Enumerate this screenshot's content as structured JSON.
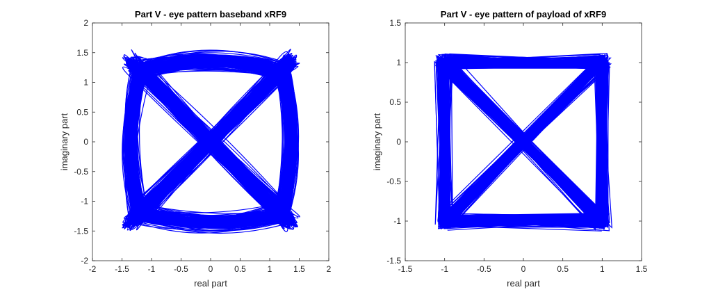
{
  "chart_data": [
    {
      "type": "line",
      "title": "Part V - eye pattern baseband xRF9",
      "xlabel": "real part",
      "ylabel": "imaginary part",
      "xlim": [
        -2,
        2
      ],
      "ylim": [
        -2,
        2
      ],
      "xticks": [
        "-2",
        "-1.5",
        "-1",
        "-0.5",
        "0",
        "0.5",
        "1",
        "1.5",
        "2"
      ],
      "yticks": [
        "-2",
        "-1.5",
        "-1",
        "-0.5",
        "0",
        "0.5",
        "1",
        "1.5",
        "2"
      ],
      "line_color": "#0000ff",
      "grid": false,
      "constellation_points": [
        [
          1.2,
          1.2
        ],
        [
          -1.2,
          1.2
        ],
        [
          -1.2,
          -1.2
        ],
        [
          1.2,
          -1.2
        ]
      ],
      "trace_spread": 0.22,
      "trace_overshoot": 0.35
    },
    {
      "type": "line",
      "title": "Part V - eye pattern of payload of xRF9",
      "xlabel": "real part",
      "ylabel": "imaginary part",
      "xlim": [
        -1.5,
        1.5
      ],
      "ylim": [
        -1.5,
        1.5
      ],
      "xticks": [
        "-1.5",
        "-1",
        "-0.5",
        "0",
        "0.5",
        "1",
        "1.5"
      ],
      "yticks": [
        "-1.5",
        "-1",
        "-0.5",
        "0",
        "0.5",
        "1",
        "1.5"
      ],
      "line_color": "#0000ff",
      "grid": false,
      "constellation_points": [
        [
          1.0,
          1.0
        ],
        [
          -1.0,
          1.0
        ],
        [
          -1.0,
          -1.0
        ],
        [
          1.0,
          -1.0
        ]
      ],
      "trace_spread": 0.14,
      "trace_overshoot": 0.0
    }
  ]
}
